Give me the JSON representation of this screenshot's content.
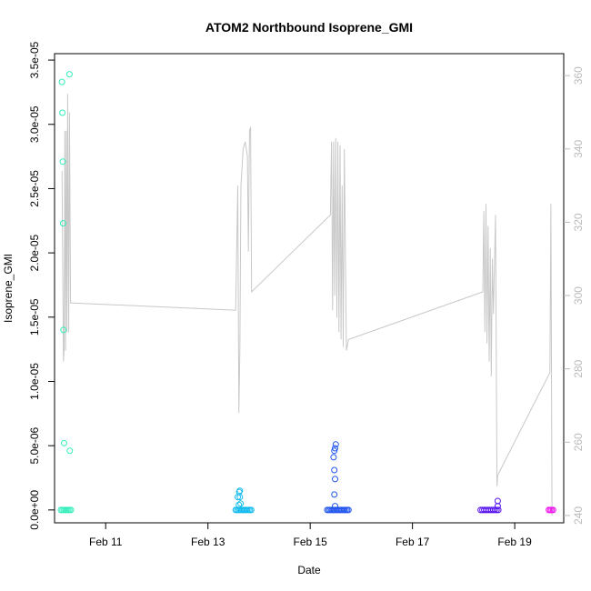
{
  "chart_data": {
    "type": "scatter",
    "title": "ATOM2 Northbound Isoprene_GMI",
    "xlabel": "Date",
    "ylabel": "Isoprene_GMI",
    "y_right_label": "",
    "x_axis": {
      "unit": "date",
      "range": [
        "2017-02-10T00:00",
        "2017-02-19T23:00"
      ],
      "ticks": [
        {
          "value": "2017-02-11T00:00",
          "label": "Feb 11"
        },
        {
          "value": "2017-02-13T00:00",
          "label": "Feb 13"
        },
        {
          "value": "2017-02-15T00:00",
          "label": "Feb 15"
        },
        {
          "value": "2017-02-17T00:00",
          "label": "Feb 17"
        },
        {
          "value": "2017-02-19T00:00",
          "label": "Feb 19"
        }
      ]
    },
    "y_axis": {
      "range": [
        -1e-06,
        3.55e-05
      ],
      "ticks": [
        {
          "value": 0,
          "label": "0.0e+00"
        },
        {
          "value": 5e-06,
          "label": "5.0e-06"
        },
        {
          "value": 1e-05,
          "label": "1.0e-05"
        },
        {
          "value": 1.5e-05,
          "label": "1.5e-05"
        },
        {
          "value": 2e-05,
          "label": "2.0e-05"
        },
        {
          "value": 2.5e-05,
          "label": "2.5e-05"
        },
        {
          "value": 3e-05,
          "label": "3.0e-05"
        },
        {
          "value": 3.5e-05,
          "label": "3.5e-05"
        }
      ]
    },
    "y2_axis": {
      "range": [
        238,
        366
      ],
      "color": "#bbbbbb",
      "ticks": [
        {
          "value": 240,
          "label": "240"
        },
        {
          "value": 260,
          "label": "260"
        },
        {
          "value": 280,
          "label": "280"
        },
        {
          "value": 300,
          "label": "300"
        },
        {
          "value": 320,
          "label": "320"
        },
        {
          "value": 340,
          "label": "340"
        },
        {
          "value": 360,
          "label": "360"
        }
      ]
    },
    "grid": false,
    "legend": "none",
    "line_color": "#c8c8c8",
    "line_series": [
      [
        "2017-02-10T03:30",
        334
      ],
      [
        "2017-02-10T03:50",
        307
      ],
      [
        "2017-02-10T04:10",
        282
      ],
      [
        "2017-02-10T04:30",
        285
      ],
      [
        "2017-02-10T04:50",
        345
      ],
      [
        "2017-02-10T05:10",
        285
      ],
      [
        "2017-02-10T05:30",
        345
      ],
      [
        "2017-02-10T05:50",
        290
      ],
      [
        "2017-02-10T06:10",
        355
      ],
      [
        "2017-02-10T06:40",
        290
      ],
      [
        "2017-02-10T07:00",
        350
      ],
      [
        "2017-02-10T07:30",
        298
      ],
      [
        "2017-02-13T13:00",
        296
      ],
      [
        "2017-02-13T14:00",
        330
      ],
      [
        "2017-02-13T14:30",
        268
      ],
      [
        "2017-02-13T15:00",
        285
      ],
      [
        "2017-02-13T15:30",
        330
      ],
      [
        "2017-02-13T16:30",
        340
      ],
      [
        "2017-02-13T17:30",
        342
      ],
      [
        "2017-02-13T18:30",
        338
      ],
      [
        "2017-02-13T19:00",
        312
      ],
      [
        "2017-02-13T19:30",
        345
      ],
      [
        "2017-02-13T20:00",
        346
      ],
      [
        "2017-02-13T20:30",
        301
      ],
      [
        "2017-02-15T09:30",
        322
      ],
      [
        "2017-02-15T10:00",
        342
      ],
      [
        "2017-02-15T10:30",
        296
      ],
      [
        "2017-02-15T11:00",
        342
      ],
      [
        "2017-02-15T11:30",
        300
      ],
      [
        "2017-02-15T12:00",
        343
      ],
      [
        "2017-02-15T12:30",
        294
      ],
      [
        "2017-02-15T13:00",
        342
      ],
      [
        "2017-02-15T13:30",
        290
      ],
      [
        "2017-02-15T14:00",
        341
      ],
      [
        "2017-02-15T14:30",
        288
      ],
      [
        "2017-02-15T15:00",
        330
      ],
      [
        "2017-02-15T15:30",
        286
      ],
      [
        "2017-02-15T16:00",
        340
      ],
      [
        "2017-02-15T17:00",
        285
      ],
      [
        "2017-02-15T18:00",
        288
      ],
      [
        "2017-02-18T09:00",
        301
      ],
      [
        "2017-02-18T09:30",
        323
      ],
      [
        "2017-02-18T10:00",
        290
      ],
      [
        "2017-02-18T10:30",
        325
      ],
      [
        "2017-02-18T11:00",
        287
      ],
      [
        "2017-02-18T11:30",
        319
      ],
      [
        "2017-02-18T12:00",
        282
      ],
      [
        "2017-02-18T12:30",
        313
      ],
      [
        "2017-02-18T13:00",
        278
      ],
      [
        "2017-02-18T13:30",
        310
      ],
      [
        "2017-02-18T14:00",
        295
      ],
      [
        "2017-02-18T15:00",
        322
      ],
      [
        "2017-02-18T15:40",
        248
      ],
      [
        "2017-02-18T16:00",
        251
      ],
      [
        "2017-02-19T16:30",
        279
      ],
      [
        "2017-02-19T17:00",
        325
      ],
      [
        "2017-02-19T17:30",
        240
      ]
    ],
    "series": [
      {
        "color": "#33eebb",
        "points": [
          [
            "2017-02-10T03:30",
            3.33e-05
          ],
          [
            "2017-02-10T03:40",
            3.09e-05
          ],
          [
            "2017-02-10T03:50",
            2.71e-05
          ],
          [
            "2017-02-10T04:00",
            2.23e-05
          ],
          [
            "2017-02-10T04:10",
            1.4e-05
          ],
          [
            "2017-02-10T04:30",
            5.2e-06
          ],
          [
            "2017-02-10T07:00",
            3.39e-05
          ],
          [
            "2017-02-10T07:10",
            4.6e-06
          ],
          [
            "2017-02-10T03:00",
            0
          ],
          [
            "2017-02-10T03:40",
            0
          ],
          [
            "2017-02-10T04:20",
            0
          ],
          [
            "2017-02-10T05:00",
            0
          ],
          [
            "2017-02-10T05:40",
            0
          ],
          [
            "2017-02-10T06:20",
            0
          ],
          [
            "2017-02-10T07:00",
            0
          ],
          [
            "2017-02-10T07:40",
            0
          ]
        ]
      },
      {
        "color": "#11bbee",
        "points": [
          [
            "2017-02-13T14:00",
            1e-06
          ],
          [
            "2017-02-13T14:40",
            1.4e-06
          ],
          [
            "2017-02-13T15:00",
            1.5e-06
          ],
          [
            "2017-02-13T15:00",
            1e-06
          ],
          [
            "2017-02-13T15:20",
            5e-07
          ],
          [
            "2017-02-13T14:30",
            4e-07
          ],
          [
            "2017-02-13T13:00",
            0
          ],
          [
            "2017-02-13T13:40",
            0
          ],
          [
            "2017-02-13T14:20",
            0
          ],
          [
            "2017-02-13T15:00",
            0
          ],
          [
            "2017-02-13T15:40",
            0
          ],
          [
            "2017-02-13T16:20",
            0
          ],
          [
            "2017-02-13T17:00",
            0
          ],
          [
            "2017-02-13T17:40",
            0
          ],
          [
            "2017-02-13T18:20",
            0
          ],
          [
            "2017-02-13T19:00",
            0
          ],
          [
            "2017-02-13T19:40",
            0
          ],
          [
            "2017-02-13T20:20",
            0
          ]
        ]
      },
      {
        "color": "#2255ee",
        "points": [
          [
            "2017-02-15T12:00",
            5.1e-06
          ],
          [
            "2017-02-15T11:40",
            4.8e-06
          ],
          [
            "2017-02-15T11:20",
            4.6e-06
          ],
          [
            "2017-02-15T11:00",
            4.1e-06
          ],
          [
            "2017-02-15T11:20",
            3.1e-06
          ],
          [
            "2017-02-15T11:40",
            2.4e-06
          ],
          [
            "2017-02-15T11:20",
            1.2e-06
          ],
          [
            "2017-02-15T11:40",
            3e-07
          ],
          [
            "2017-02-15T08:00",
            0
          ],
          [
            "2017-02-15T08:40",
            0
          ],
          [
            "2017-02-15T09:20",
            0
          ],
          [
            "2017-02-15T10:00",
            0
          ],
          [
            "2017-02-15T10:40",
            0
          ],
          [
            "2017-02-15T11:20",
            0
          ],
          [
            "2017-02-15T12:00",
            0
          ],
          [
            "2017-02-15T12:40",
            0
          ],
          [
            "2017-02-15T13:20",
            0
          ],
          [
            "2017-02-15T14:00",
            0
          ],
          [
            "2017-02-15T14:40",
            0
          ],
          [
            "2017-02-15T15:20",
            0
          ],
          [
            "2017-02-15T16:00",
            0
          ],
          [
            "2017-02-15T16:40",
            0
          ],
          [
            "2017-02-15T17:20",
            0
          ],
          [
            "2017-02-15T18:00",
            0
          ]
        ]
      },
      {
        "color": "#5511ee",
        "points": [
          [
            "2017-02-18T16:00",
            7e-07
          ],
          [
            "2017-02-18T16:00",
            3e-07
          ],
          [
            "2017-02-18T08:00",
            0
          ],
          [
            "2017-02-18T08:50",
            0
          ],
          [
            "2017-02-18T09:40",
            0
          ],
          [
            "2017-02-18T10:30",
            0
          ],
          [
            "2017-02-18T11:20",
            0
          ],
          [
            "2017-02-18T12:10",
            0
          ],
          [
            "2017-02-18T13:00",
            0
          ],
          [
            "2017-02-18T13:50",
            0
          ],
          [
            "2017-02-18T14:40",
            0
          ],
          [
            "2017-02-18T15:30",
            0
          ],
          [
            "2017-02-18T16:20",
            0
          ]
        ]
      },
      {
        "color": "#ee11ee",
        "points": [
          [
            "2017-02-19T16:00",
            0
          ],
          [
            "2017-02-19T16:40",
            0
          ],
          [
            "2017-02-19T17:20",
            0
          ],
          [
            "2017-02-19T18:00",
            0
          ]
        ]
      }
    ]
  }
}
